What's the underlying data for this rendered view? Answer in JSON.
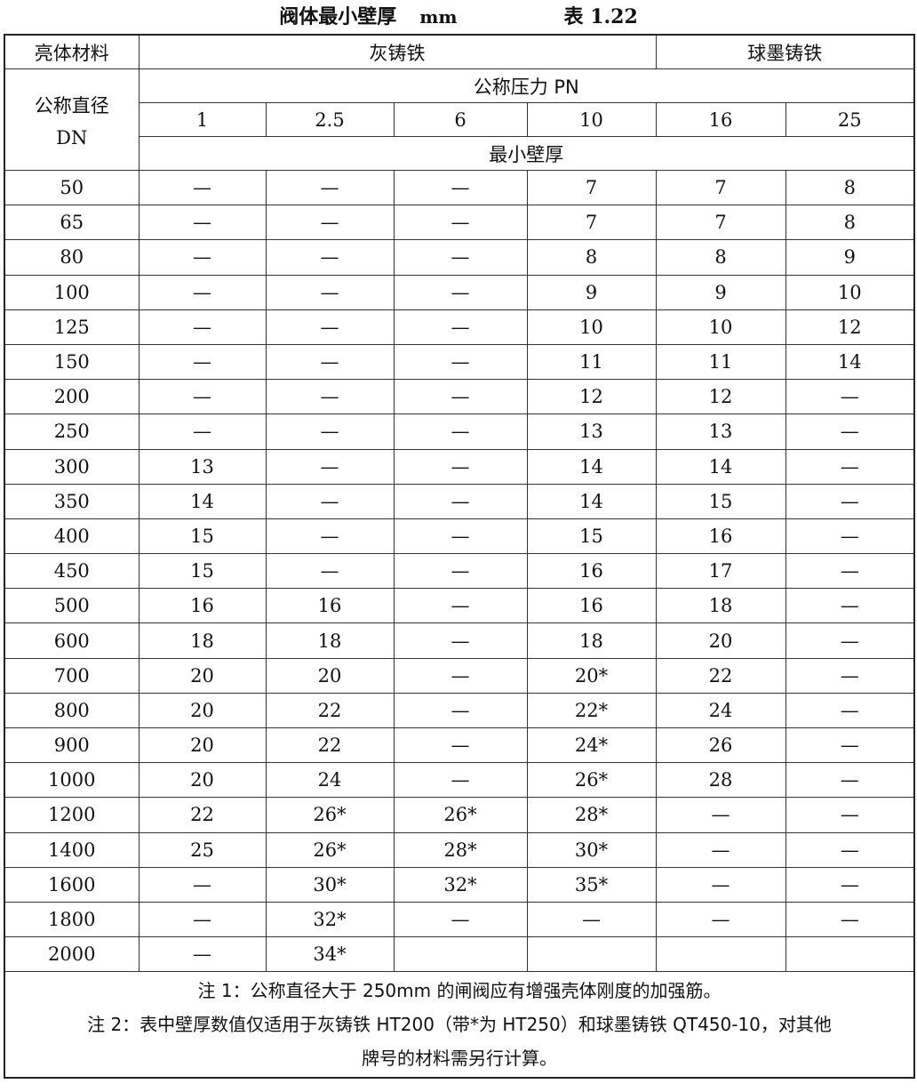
{
  "title": "阀体最小壁厚",
  "unit": "mm",
  "table_no": "表 1.22",
  "header": {
    "material_label": "亮体材料",
    "grey_iron": "灰铸铁",
    "ductile_iron": "球墨铸铁",
    "dn_label_1": "公称直径",
    "dn_label_2": "DN",
    "pn_label": "公称压力 PN",
    "pn_values": [
      "1",
      "2.5",
      "6",
      "10",
      "16",
      "25"
    ],
    "min_thickness_label": "最小壁厚"
  },
  "rows": [
    [
      "50",
      "—",
      "—",
      "—",
      "7",
      "7",
      "8"
    ],
    [
      "65",
      "—",
      "—",
      "—",
      "7",
      "7",
      "8"
    ],
    [
      "80",
      "—",
      "—",
      "—",
      "8",
      "8",
      "9"
    ],
    [
      "100",
      "—",
      "—",
      "—",
      "9",
      "9",
      "10"
    ],
    [
      "125",
      "—",
      "—",
      "—",
      "10",
      "10",
      "12"
    ],
    [
      "150",
      "—",
      "—",
      "—",
      "11",
      "11",
      "14"
    ],
    [
      "200",
      "—",
      "—",
      "—",
      "12",
      "12",
      "—"
    ],
    [
      "250",
      "—",
      "—",
      "—",
      "13",
      "13",
      "—"
    ],
    [
      "300",
      "13",
      "—",
      "—",
      "14",
      "14",
      "—"
    ],
    [
      "350",
      "14",
      "—",
      "—",
      "14",
      "15",
      "—"
    ],
    [
      "400",
      "15",
      "—",
      "—",
      "15",
      "16",
      "—"
    ],
    [
      "450",
      "15",
      "—",
      "—",
      "16",
      "17",
      "—"
    ],
    [
      "500",
      "16",
      "16",
      "—",
      "16",
      "18",
      "—"
    ],
    [
      "600",
      "18",
      "18",
      "—",
      "18",
      "20",
      "—"
    ],
    [
      "700",
      "20",
      "20",
      "—",
      "20*",
      "22",
      "—"
    ],
    [
      "800",
      "20",
      "22",
      "—",
      "22*",
      "24",
      "—"
    ],
    [
      "900",
      "20",
      "22",
      "—",
      "24*",
      "26",
      "—"
    ],
    [
      "1000",
      "20",
      "24",
      "—",
      "26*",
      "28",
      "—"
    ],
    [
      "1200",
      "22",
      "26*",
      "26*",
      "28*",
      "—",
      "—"
    ],
    [
      "1400",
      "25",
      "26*",
      "28*",
      "30*",
      "—",
      "—"
    ],
    [
      "1600",
      "—",
      "30*",
      "32*",
      "35*",
      "—",
      "—"
    ],
    [
      "1800",
      "—",
      "32*",
      "—",
      "—",
      "—",
      "—"
    ],
    [
      "2000",
      "—",
      "34*",
      "",
      "",
      "",
      ""
    ]
  ],
  "notes": {
    "note1": "注 1：公称直径大于 250mm 的闸阀应有增强壳体刚度的加强筋。",
    "note2_line1": "注 2：表中壁厚数值仅适用于灰铸铁 HT200（带*为 HT250）和球墨铸铁 QT450-10，对其他",
    "note2_line2": "牌号的材料需另行计算。"
  }
}
